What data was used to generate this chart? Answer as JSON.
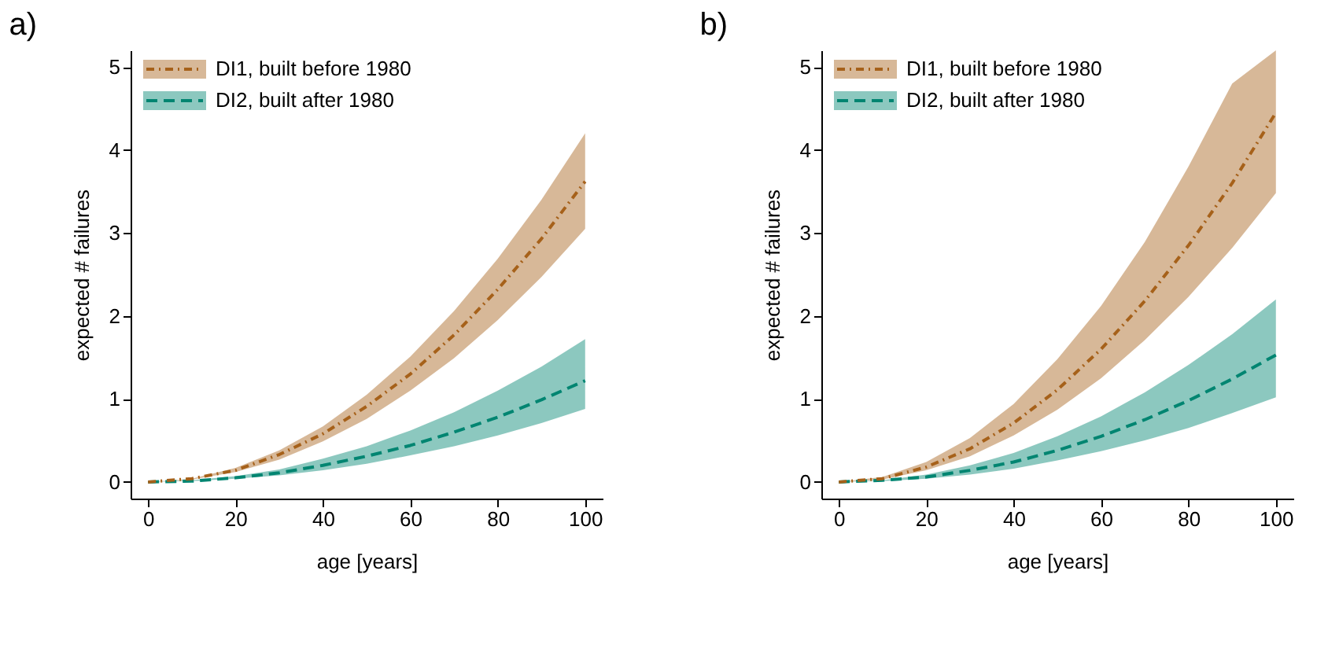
{
  "chart_data": [
    {
      "type": "line",
      "title": "a)",
      "xlabel": "age [years]",
      "ylabel": "expected # failures",
      "x": [
        0,
        10,
        20,
        30,
        40,
        50,
        60,
        70,
        80,
        90,
        100
      ],
      "xlim": [
        -4,
        104
      ],
      "ylim": [
        -0.2,
        5.2
      ],
      "xticks": [
        0,
        20,
        40,
        60,
        80,
        100
      ],
      "yticks": [
        0,
        1,
        2,
        3,
        4,
        5
      ],
      "grid": false,
      "legend": "top left",
      "series": [
        {
          "name": "DI1, built before 1980",
          "color": "#a6611a",
          "line_style": "dashdot",
          "values": [
            0,
            0.04,
            0.14,
            0.33,
            0.58,
            0.91,
            1.3,
            1.77,
            2.32,
            2.93,
            3.62
          ],
          "lower": [
            0,
            0.03,
            0.12,
            0.27,
            0.49,
            0.76,
            1.1,
            1.49,
            1.95,
            2.47,
            3.05
          ],
          "upper": [
            0,
            0.04,
            0.17,
            0.38,
            0.67,
            1.05,
            1.51,
            2.06,
            2.69,
            3.4,
            4.2
          ]
        },
        {
          "name": "DI2, built after 1980",
          "color": "#018571",
          "line_style": "dashed",
          "values": [
            0,
            0.01,
            0.05,
            0.11,
            0.2,
            0.31,
            0.44,
            0.6,
            0.78,
            0.99,
            1.22
          ],
          "lower": [
            0,
            0.01,
            0.04,
            0.08,
            0.14,
            0.22,
            0.32,
            0.43,
            0.56,
            0.71,
            0.88
          ],
          "upper": [
            0,
            0.02,
            0.07,
            0.15,
            0.28,
            0.43,
            0.62,
            0.84,
            1.1,
            1.39,
            1.72
          ]
        }
      ]
    },
    {
      "type": "line",
      "title": "b)",
      "xlabel": "age [years]",
      "ylabel": "expected # failures",
      "x": [
        0,
        10,
        20,
        30,
        40,
        50,
        60,
        70,
        80,
        90,
        100
      ],
      "xlim": [
        -4,
        104
      ],
      "ylim": [
        -0.2,
        5.2
      ],
      "xticks": [
        0,
        20,
        40,
        60,
        80,
        100
      ],
      "yticks": [
        0,
        1,
        2,
        3,
        4,
        5
      ],
      "grid": false,
      "legend": "top left",
      "series": [
        {
          "name": "DI1, built before 1980",
          "color": "#a6611a",
          "line_style": "dashdot",
          "values": [
            0,
            0.04,
            0.18,
            0.4,
            0.71,
            1.11,
            1.6,
            2.18,
            2.85,
            3.6,
            4.45
          ],
          "lower": [
            0,
            0.03,
            0.14,
            0.31,
            0.56,
            0.87,
            1.25,
            1.71,
            2.23,
            2.82,
            3.48
          ],
          "upper": [
            0,
            0.06,
            0.24,
            0.53,
            0.94,
            1.48,
            2.12,
            2.89,
            3.8,
            4.8,
            5.2
          ]
        },
        {
          "name": "DI2, built after 1980",
          "color": "#018571",
          "line_style": "dashed",
          "values": [
            0,
            0.02,
            0.06,
            0.14,
            0.24,
            0.38,
            0.55,
            0.75,
            0.98,
            1.24,
            1.53
          ],
          "lower": [
            0,
            0.01,
            0.04,
            0.09,
            0.16,
            0.26,
            0.37,
            0.5,
            0.65,
            0.83,
            1.02
          ],
          "upper": [
            0,
            0.02,
            0.09,
            0.2,
            0.35,
            0.55,
            0.79,
            1.08,
            1.41,
            1.78,
            2.2
          ]
        }
      ]
    }
  ]
}
